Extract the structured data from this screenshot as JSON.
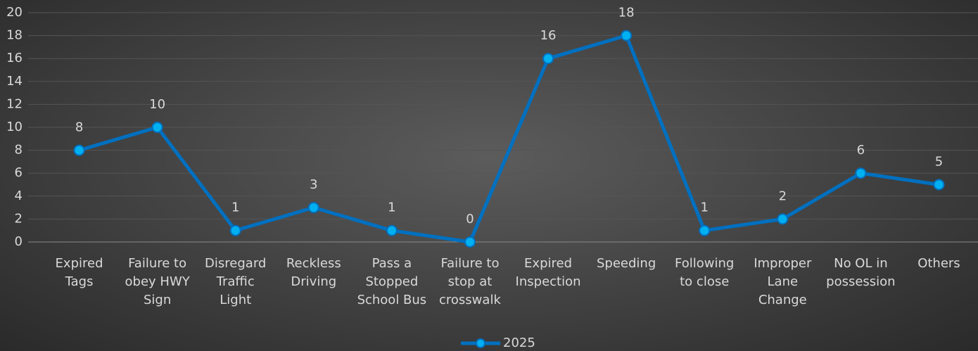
{
  "chart_data": {
    "type": "line",
    "categories": [
      [
        "Expired",
        "Tags"
      ],
      [
        "Failure to",
        "obey HWY",
        "Sign"
      ],
      [
        "Disregard",
        "Traffic",
        "Light"
      ],
      [
        "Reckless",
        "Driving"
      ],
      [
        "Pass a",
        "Stopped",
        "School Bus"
      ],
      [
        "Failure to",
        "stop at",
        "crosswalk"
      ],
      [
        "Expired",
        "Inspection"
      ],
      [
        "Speeding"
      ],
      [
        "Following",
        "to close"
      ],
      [
        "Improper",
        "Lane",
        "Change"
      ],
      [
        "No OL in",
        "possession"
      ],
      [
        "Others"
      ]
    ],
    "series": [
      {
        "name": "2025",
        "color": "#0070c0",
        "marker_color": "#00b0f0",
        "values": [
          8,
          10,
          1,
          3,
          1,
          0,
          16,
          18,
          1,
          2,
          6,
          5
        ]
      }
    ],
    "ylim": [
      0,
      20
    ],
    "yticks": [
      0,
      2,
      4,
      6,
      8,
      10,
      12,
      14,
      16,
      18,
      20
    ],
    "grid": true,
    "legend": "bottom",
    "data_labels": true
  }
}
